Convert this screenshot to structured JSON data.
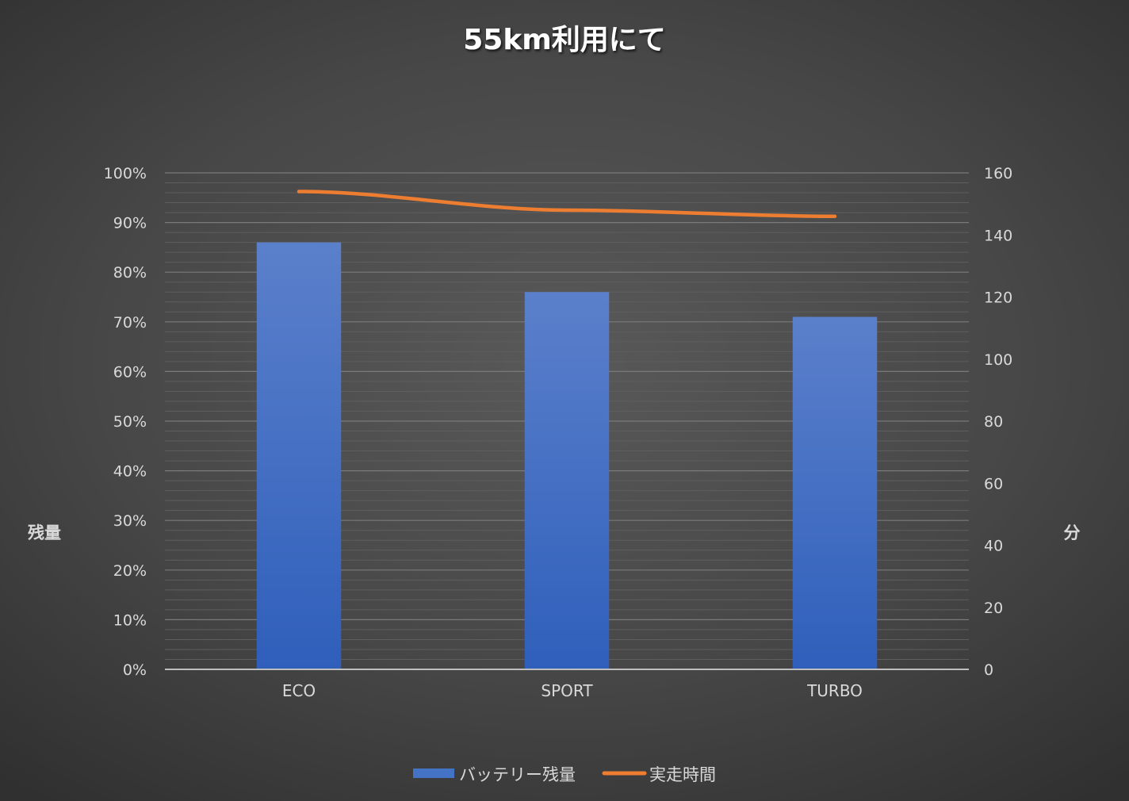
{
  "chart_data": {
    "type": "bar",
    "title": "55km利用にて",
    "categories": [
      "ECO",
      "SPORT",
      "TURBO"
    ],
    "series": [
      {
        "name": "バッテリー残量",
        "type": "bar",
        "axis": "left",
        "values": [
          0.86,
          0.76,
          0.71
        ],
        "color": "#4472C4"
      },
      {
        "name": "実走時間",
        "type": "line",
        "axis": "right",
        "values": [
          154,
          148,
          146
        ],
        "color": "#ED7D31"
      }
    ],
    "ylabel": "残量",
    "y2label": "分",
    "ylim": [
      0,
      1
    ],
    "y2lim": [
      0,
      160
    ],
    "yticks": [
      "0%",
      "10%",
      "20%",
      "30%",
      "40%",
      "50%",
      "60%",
      "70%",
      "80%",
      "90%",
      "100%"
    ],
    "y2ticks": [
      "0",
      "20",
      "40",
      "60",
      "80",
      "100",
      "120",
      "140",
      "160"
    ],
    "grid": true,
    "legend_position": "bottom"
  }
}
